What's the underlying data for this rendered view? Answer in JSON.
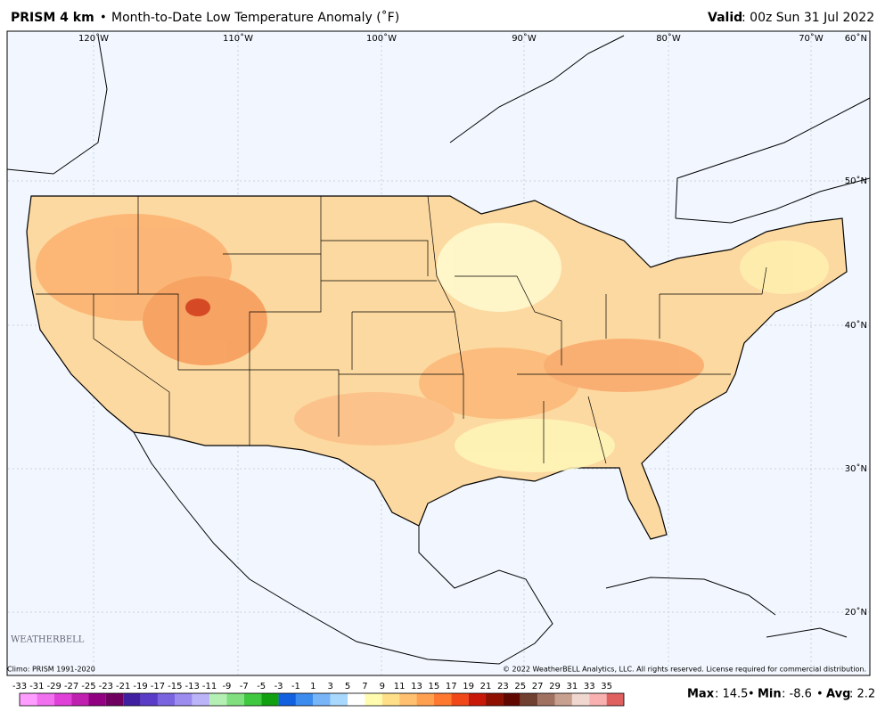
{
  "header": {
    "product": "PRISM 4 km",
    "separator": "•",
    "title": "Month-to-Date Low Temperature Anomaly (˚F)",
    "valid_label": "Valid",
    "valid_time": ": 00z Sun 31 Jul 2022"
  },
  "longitude_labels": [
    "120˚W",
    "110˚W",
    "100˚W",
    "90˚W",
    "80˚W",
    "70˚W"
  ],
  "latitude_labels": [
    "60˚N",
    "50˚N",
    "40˚N",
    "30˚N",
    "20˚N"
  ],
  "logo": "WEATHERBELL",
  "footer": {
    "climo": "Climo: PRISM 1991-2020",
    "copyright": "© 2022 WeatherBELL Analytics, LLC. All rights reserved. License required for commercial distribution."
  },
  "colorbar": {
    "labels": [
      -33,
      -31,
      -29,
      -27,
      -25,
      -23,
      -21,
      -19,
      -17,
      -15,
      -13,
      -11,
      -9,
      -7,
      -5,
      -3,
      -1,
      1,
      3,
      5,
      7,
      9,
      11,
      13,
      15,
      17,
      19,
      21,
      23,
      25,
      27,
      29,
      31,
      33,
      35
    ],
    "colors": [
      "#ff9cff",
      "#f070f0",
      "#e040d8",
      "#c020b0",
      "#900080",
      "#700060",
      "#4020a0",
      "#5a3cc8",
      "#7a64e0",
      "#9c8cf0",
      "#bcb4f8",
      "#b4f0b4",
      "#80e080",
      "#40c840",
      "#10a010",
      "#1060e0",
      "#3c8cf0",
      "#78b4f8",
      "#a8d8fc",
      "#ffffff",
      "#fffcb0",
      "#ffe088",
      "#ffc070",
      "#ffa050",
      "#ff7830",
      "#f04818",
      "#c81808",
      "#901000",
      "#600800",
      "#704030",
      "#a07060",
      "#c8a090",
      "#f0d8d0",
      "#f8b0b0",
      "#e06060"
    ]
  },
  "stats": {
    "max_label": "Max",
    "max": ": 14.5",
    "min_label": "Min",
    "min": ": -8.6",
    "avg_label": "Avg",
    "avg": ": 2.2"
  }
}
